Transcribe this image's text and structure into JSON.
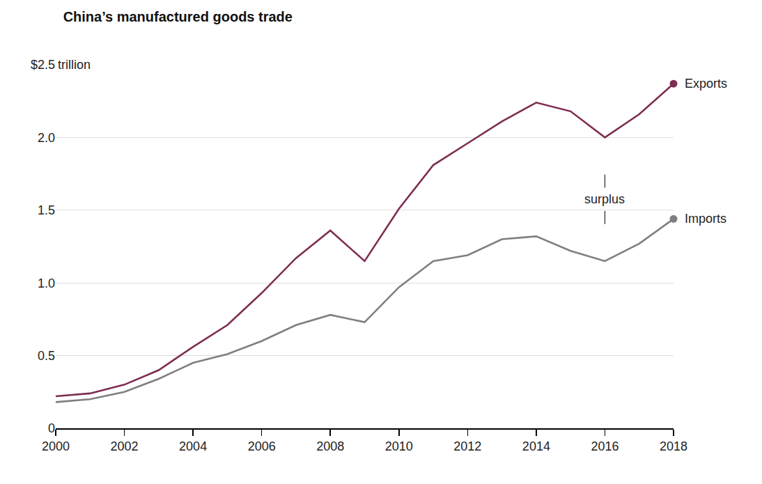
{
  "chart_data": {
    "type": "line",
    "title": "China’s manufactured goods trade",
    "ylabel": "trillion",
    "x": [
      2000,
      2001,
      2002,
      2003,
      2004,
      2005,
      2006,
      2007,
      2008,
      2009,
      2010,
      2011,
      2012,
      2013,
      2014,
      2015,
      2016,
      2017,
      2018
    ],
    "series": [
      {
        "name": "Exports",
        "color": "#7e2d52",
        "values": [
          0.22,
          0.24,
          0.3,
          0.4,
          0.56,
          0.71,
          0.93,
          1.17,
          1.36,
          1.15,
          1.51,
          1.81,
          1.96,
          2.11,
          2.24,
          2.18,
          2.0,
          2.16,
          2.37
        ]
      },
      {
        "name": "Imports",
        "color": "#7f7f7f",
        "values": [
          0.18,
          0.2,
          0.25,
          0.34,
          0.45,
          0.51,
          0.6,
          0.71,
          0.78,
          0.73,
          0.97,
          1.15,
          1.19,
          1.3,
          1.32,
          1.22,
          1.15,
          1.27,
          1.44
        ]
      }
    ],
    "annotations": [
      {
        "text": "surplus",
        "x": 2016
      }
    ],
    "xlim": [
      2000,
      2018
    ],
    "xticks": [
      2000,
      2002,
      2004,
      2006,
      2008,
      2010,
      2012,
      2014,
      2016,
      2018
    ],
    "ylim": [
      0,
      2.5
    ],
    "yticks": [
      0,
      0.5,
      {
        "value": 1,
        "label": "1.0"
      },
      1.5,
      {
        "value": 2,
        "label": "2.0"
      },
      {
        "value": 2.5,
        "label": "$2.5"
      }
    ],
    "grid": true
  }
}
